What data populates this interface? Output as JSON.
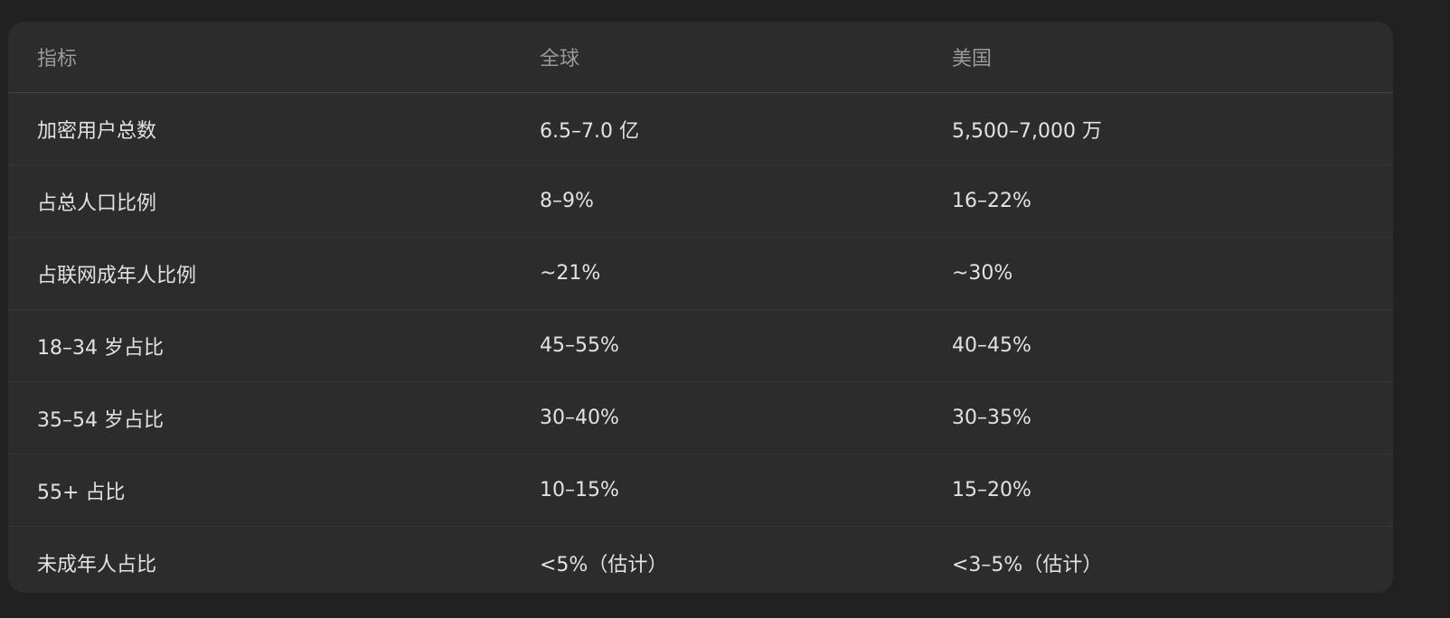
{
  "table": {
    "headers": [
      "指标",
      "全球",
      "美国"
    ],
    "rows": [
      [
        "加密用户总数",
        "6.5–7.0 亿",
        "5,500–7,000 万"
      ],
      [
        "占总人口比例",
        "8–9%",
        "16–22%"
      ],
      [
        "占联网成年人比例",
        "~21%",
        "~30%"
      ],
      [
        "18–34 岁占比",
        "45–55%",
        "40–45%"
      ],
      [
        "35–54 岁占比",
        "30–40%",
        "30–35%"
      ],
      [
        "55+ 占比",
        "10–15%",
        "15–20%"
      ],
      [
        "未成年人占比",
        "<5%（估计）",
        "<3–5%（估计）"
      ]
    ]
  }
}
